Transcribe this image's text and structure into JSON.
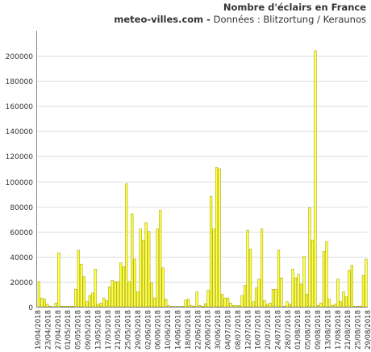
{
  "chart_data": {
    "type": "bar",
    "title": "Nombre d'éclairs en France",
    "subtitle_site": "meteo-villes.com -",
    "subtitle_source": "Données : Blitzortung / Keraunos",
    "ylim": [
      0,
      220000
    ],
    "yticks": [
      0,
      20000,
      40000,
      60000,
      80000,
      100000,
      120000,
      140000,
      160000,
      180000,
      200000
    ],
    "grid": true,
    "bar_color": "#ffff44",
    "bar_edge_color": "#999900",
    "grid_color": "#dddddd",
    "x_start": "2018-04-19",
    "x_end": "2018-08-29",
    "x_tick_labels": [
      "19/04/2018",
      "23/04/2018",
      "27/04/2018",
      "01/05/2018",
      "05/05/2018",
      "09/05/2018",
      "13/05/2018",
      "17/05/2018",
      "21/05/2018",
      "25/05/2018",
      "29/05/2018",
      "02/06/2018",
      "06/06/2018",
      "10/06/2018",
      "14/06/2018",
      "18/06/2018",
      "22/06/2018",
      "26/06/2018",
      "30/06/2018",
      "04/07/2018",
      "08/07/2018",
      "12/07/2018",
      "16/07/2018",
      "20/07/2018",
      "24/07/2018",
      "28/07/2018",
      "01/08/2018",
      "05/08/2018",
      "09/08/2018",
      "13/08/2018",
      "17/08/2018",
      "21/08/2018",
      "25/08/2018",
      "29/08/2018"
    ],
    "values": [
      20000,
      7000,
      6000,
      2000,
      500,
      200,
      3000,
      43000,
      500,
      500,
      500,
      500,
      500,
      14000,
      45000,
      34000,
      24000,
      4000,
      9000,
      11000,
      30000,
      2000,
      3000,
      7000,
      5000,
      16000,
      21000,
      20000,
      20000,
      35000,
      32000,
      98000,
      20000,
      74000,
      38000,
      12000,
      62000,
      53000,
      67000,
      60000,
      19000,
      7000,
      62000,
      77000,
      31000,
      6000,
      800,
      500,
      300,
      300,
      300,
      300,
      5500,
      6000,
      1000,
      500,
      12000,
      1000,
      500,
      2500,
      13000,
      88000,
      62000,
      111000,
      110000,
      10000,
      7000,
      7000,
      3000,
      1000,
      1000,
      1000,
      9000,
      17000,
      61000,
      46000,
      4000,
      15000,
      22000,
      62000,
      5000,
      2000,
      3000,
      14000,
      14000,
      45000,
      23000,
      500,
      4000,
      2000,
      30000,
      23000,
      26000,
      18000,
      40000,
      10000,
      79000,
      53000,
      204000,
      1000,
      3000,
      44000,
      52000,
      6000,
      1000,
      2000,
      22000,
      4000,
      12000,
      8000,
      29000,
      33000,
      500,
      500,
      500,
      25000,
      38000
    ]
  }
}
